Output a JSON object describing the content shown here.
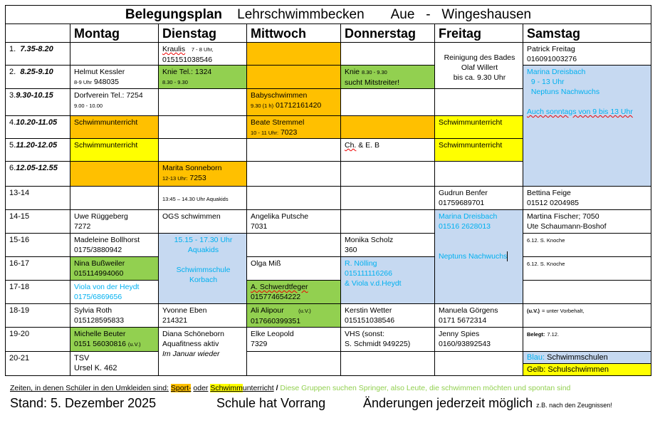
{
  "title": {
    "part1": "Belegungsplan",
    "part2": "Lehrschwimmbecken",
    "part3": "Aue",
    "dash": "-",
    "part4": "Wingeshausen"
  },
  "days": [
    "Montag",
    "Dienstag",
    "Mittwoch",
    "Donnerstag",
    "Freitag",
    "Samstag"
  ],
  "times": [
    {
      "n": "1.",
      "t": "7.35-8.20"
    },
    {
      "n": "2.",
      "t": "8.25-9.10"
    },
    {
      "n": "3.",
      "t": "9.30-10.15"
    },
    {
      "n": "4.",
      "t": "10.20-11.05"
    },
    {
      "n": "5.",
      "t": "11.20-12.05"
    },
    {
      "n": "6.",
      "t": "12.05-12.55"
    },
    {
      "n": "",
      "t": "13-14"
    },
    {
      "n": "",
      "t": "14-15"
    },
    {
      "n": "",
      "t": "15-16"
    },
    {
      "n": "",
      "t": "16-17"
    },
    {
      "n": "",
      "t": "17-18"
    },
    {
      "n": "",
      "t": "18-19"
    },
    {
      "n": "",
      "t": "19-20"
    },
    {
      "n": "",
      "t": "20-21"
    }
  ],
  "cells": {
    "r1_di_a": "Kraulis",
    "r1_di_b": "7 - 8 Uhr,",
    "r1_di_c": "015151038546",
    "r1_fr_a": "Reinigung des Bades",
    "r1_fr_b": "Olaf Willert",
    "r1_fr_c": "bis ca. 9.30 Uhr",
    "r1_sa_a": "Patrick Freitag",
    "r1_sa_b": "016091003276",
    "r2_mo_a": "Helmut Kessler",
    "r2_mo_b": "8-9 Uhr",
    "r2_mo_c": "948035",
    "r2_di_a": "Knie Tel.: 1324",
    "r2_di_b": "8.30 - 9.30",
    "r2_do_a": "Knie",
    "r2_do_b": "8.30 - 9.30",
    "r2_do_c": "sucht Mitstreiter!",
    "r2_sa_a": "Marina Dreisbach",
    "r2_sa_b": "9 - 13 Uhr",
    "r2_sa_c": "Neptuns Nachwuchs",
    "r2_sa_d": "Auch sonntags von 9 bis 13 Uhr",
    "r3_mo_a": "Dorfverein Tel.: 7254",
    "r3_mo_b": "9.00 - 10.00",
    "r3_mi_a": "Babyschwimmen",
    "r3_mi_b": "9.30 (1 h)",
    "r3_mi_c": "01712161420",
    "r4_mo": "Schwimmunterricht",
    "r4_mi_a": "Beate Stremmel",
    "r4_mi_b": "10 - 11 Uhr:",
    "r4_mi_c": "7023",
    "r4_fr": "Schwimmunterricht",
    "r5_mo": "Schwimmunterricht",
    "r5_do_a": "Ch.",
    "r5_do_b": "& E. B",
    "r5_fr": "Schwimmunterricht",
    "r6_di_a": "Marita Sonneborn",
    "r6_di_b": "12-13 Uhr:",
    "r6_di_c": "7253",
    "r7_di": "13:45 – 14.30 Uhr Aquakids",
    "r7_fr_a": "Gudrun Benfer",
    "r7_fr_b": "01759689701",
    "r7_sa_a": "Bettina Feige",
    "r7_sa_b": "01512 0204985",
    "r8_mo_a": "Uwe Rüggeberg",
    "r8_mo_b": "7272",
    "r8_di": "OGS schwimmen",
    "r8_mi_a": "Angelika Putsche",
    "r8_mi_b": "7031",
    "r8_fr_a": "Marina Dreisbach",
    "r8_fr_b": "01516 2628013",
    "r8_fr_c": "Neptuns Nachwuchs",
    "r8_sa_a": "Martina Fischer; 7050",
    "r8_sa_b": "Ute Schaumann-Boshof",
    "r9_mo_a": "Madeleine Bollhorst",
    "r9_mo_b": "0175/3880942",
    "r9_di_a": "15.15 - 17.30 Uhr",
    "r9_di_b": "Aquakids",
    "r9_di_c": "Schwimmschule",
    "r9_di_d": "Korbach",
    "r9_do_a": "Monika Scholz",
    "r9_do_b": "360",
    "r9_sa": "6.12. S. Knoche",
    "r10_mo_a": "Nina Bußweiler",
    "r10_mo_b": "015114994060",
    "r10_mi": "Olga Miß",
    "r10_do_a": "R. Nölling",
    "r10_do_b": "015111116266",
    "r10_do_c": "& Viola v.d.Heydt",
    "r10_sa": "6.12. S. Knoche",
    "r11_mo_a": "Viola von der Heydt",
    "r11_mo_b": "0175/6869656",
    "r11_mi_a": "A. Schwerdtfeger",
    "r11_mi_b": "015774654222",
    "r12_mo_a": "Sylvia Roth",
    "r12_mo_b": "015128595833",
    "r12_di_a": "Yvonne Eben",
    "r12_di_b": "214321",
    "r12_mi_a": "Ali Alipour",
    "r12_mi_b": "(u.V.)",
    "r12_mi_c": "017660399351",
    "r12_do_a": "Kerstin Wetter",
    "r12_do_b": "015151038546",
    "r12_fr_a": "Manuela Görgens",
    "r12_fr_b": "0171 5672314",
    "r12_sa_a": "(u.V.)",
    "r12_sa_b": "= unter Vorbehalt,",
    "r13_mo_a": "Michelle Beuter",
    "r13_mo_b": "0151 56030816",
    "r13_mo_c": "(u.V.)",
    "r13_di_a": "Diana Schöneborn",
    "r13_di_b": "Aquafitness aktiv",
    "r13_di_c": "Im Januar wieder",
    "r13_mi_a": "Elke Leopold",
    "r13_mi_b": "7329",
    "r13_do_a": "VHS (sonst:",
    "r13_do_b": "S. Schmidt  949225)",
    "r13_fr_a": "Jenny Spies",
    "r13_fr_b": "0160/93892543",
    "r13_sa_a": "Belegt:",
    "r13_sa_b": "7.12.",
    "r14_mo_a": "TSV",
    "r14_mo_b": "Ursel K. 462",
    "legend_blue_a": "Blau:",
    "legend_blue_b": "Schwimmschulen",
    "legend_yellow_a": "Gelb:",
    "legend_yellow_b": "Schulschwimmen"
  },
  "footer": {
    "line1_a": "Zeiten, in denen Schüler in den Umkleiden sind:",
    "line1_sport": "Sport-",
    "line1_oder": "oder",
    "line1_schwimm": "Schwimm",
    "line1_unterricht": "unterricht",
    "line1_slash": "/",
    "line1_green": "Diese Gruppen suchen Springer, also Leute, die schwimmen möchten und spontan sind",
    "stand": "Stand: 5. Dezember 2025",
    "vorrang": "Schule hat Vorrang",
    "aenderungen": "Änderungen jederzeit möglich",
    "zb": "z.B. nach den Zeugnissen!"
  },
  "colors": {
    "orange": "#ffc000",
    "yellow": "#ffff00",
    "green": "#92d050",
    "lightblue": "#c6d9f1",
    "bluetext": "#00b0f0"
  }
}
